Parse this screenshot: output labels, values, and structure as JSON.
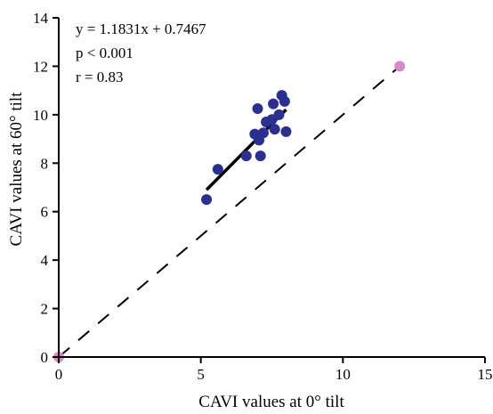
{
  "chart_data": {
    "type": "scatter",
    "xlabel": "CAVI values at 0° tilt",
    "ylabel": "CAVI values at 60° tilt",
    "xlim": [
      0,
      15
    ],
    "ylim": [
      0,
      14
    ],
    "xticks": [
      "0",
      "5",
      "10",
      "15"
    ],
    "yticks": [
      "0",
      "2",
      "4",
      "6",
      "8",
      "10",
      "12",
      "14"
    ],
    "annotations": [
      "y = 1.1831x + 0.7467",
      "p < 0.001",
      "r = 0.83"
    ],
    "points": [
      {
        "x": 5.2,
        "y": 6.5
      },
      {
        "x": 5.6,
        "y": 7.75
      },
      {
        "x": 6.6,
        "y": 8.3
      },
      {
        "x": 6.9,
        "y": 9.2
      },
      {
        "x": 7.0,
        "y": 10.25
      },
      {
        "x": 7.05,
        "y": 8.95
      },
      {
        "x": 7.1,
        "y": 8.3
      },
      {
        "x": 7.2,
        "y": 9.25
      },
      {
        "x": 7.3,
        "y": 9.7
      },
      {
        "x": 7.5,
        "y": 9.8
      },
      {
        "x": 7.55,
        "y": 10.45
      },
      {
        "x": 7.6,
        "y": 9.4
      },
      {
        "x": 7.75,
        "y": 10.0
      },
      {
        "x": 7.85,
        "y": 10.8
      },
      {
        "x": 7.95,
        "y": 10.55
      },
      {
        "x": 8.0,
        "y": 9.3
      }
    ],
    "highlight_points": [
      {
        "x": 0,
        "y": 0
      },
      {
        "x": 12,
        "y": 12
      }
    ],
    "regression": {
      "slope": 1.1831,
      "intercept": 0.7467,
      "x_range": [
        5.2,
        8.0
      ]
    },
    "identity_line": {
      "x_range": [
        0,
        12
      ]
    },
    "colors": {
      "points": "#2b2f8f",
      "highlight": "#d889c8",
      "regression": "#000000",
      "identity": "#000000",
      "axes": "#000000"
    },
    "grid": false,
    "legend": "none"
  }
}
